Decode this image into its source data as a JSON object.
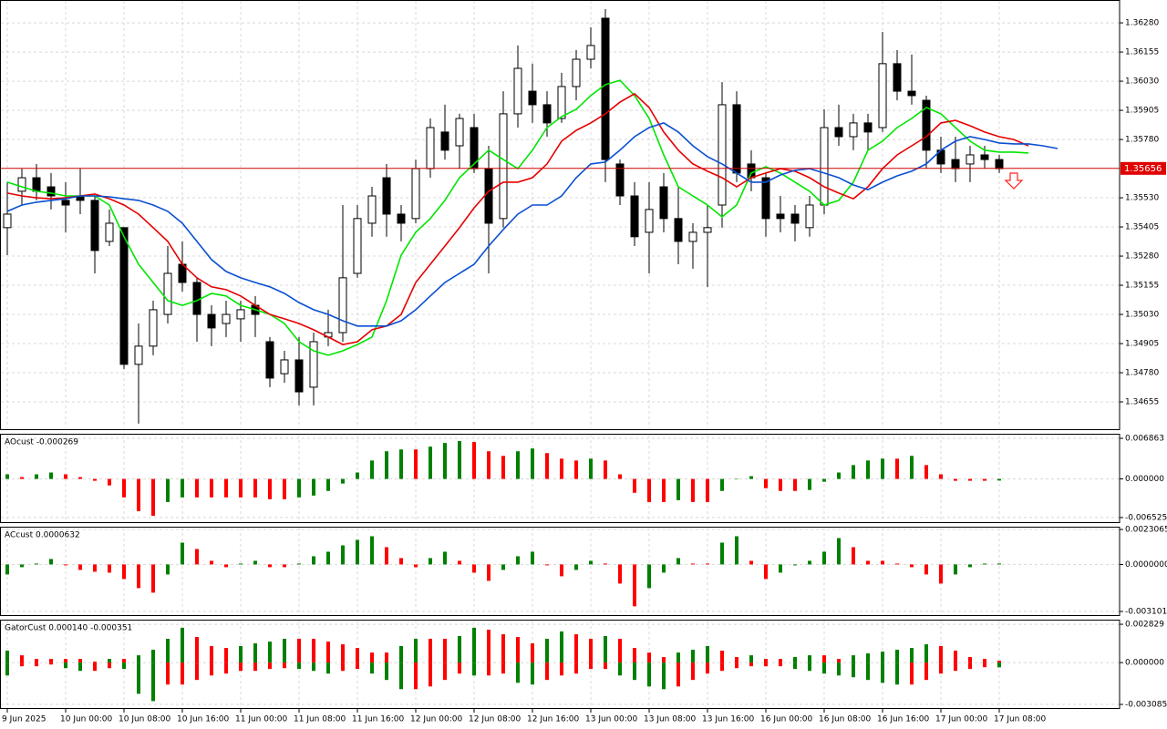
{
  "chart_data": [
    {
      "type": "candlestick",
      "open": [
        1.35402,
        1.35558,
        1.35616,
        1.35577,
        1.35519,
        1.35538,
        1.35519,
        1.35343,
        1.35402,
        1.34816,
        1.34894,
        1.3503,
        1.35245,
        1.35167,
        1.3503,
        1.34991,
        1.35011,
        1.35069,
        1.34913,
        1.34776,
        1.34835,
        1.34718,
        1.34933,
        1.34952,
        1.35206,
        1.35421,
        1.35616,
        1.3546,
        1.35441,
        1.35655,
        1.35812,
        1.35753,
        1.35831,
        1.35655,
        1.35441,
        1.3589,
        1.35987,
        1.35929,
        1.3587,
        1.36007,
        1.36124,
        1.363,
        1.35675,
        1.35538,
        1.35382,
        1.35577,
        1.35441,
        1.35343,
        1.35382,
        1.35499,
        1.35929,
        1.35675,
        1.35616,
        1.3546,
        1.3546,
        1.35402,
        1.35499,
        1.35831,
        1.35792,
        1.35851,
        1.35831,
        1.36105,
        1.35987,
        1.35948,
        1.35734,
        1.35694,
        1.35675,
        1.35714,
        1.35694
      ],
      "high": [
        1.35597,
        1.35655,
        1.35675,
        1.35636,
        1.35597,
        1.35655,
        1.35538,
        1.3548,
        1.35402,
        1.34991,
        1.35089,
        1.35323,
        1.35343,
        1.35187,
        1.35069,
        1.35089,
        1.35089,
        1.35109,
        1.34933,
        1.34874,
        1.34933,
        1.34952,
        1.3505,
        1.35499,
        1.35499,
        1.35577,
        1.35675,
        1.35499,
        1.35694,
        1.3587,
        1.35929,
        1.3589,
        1.3589,
        1.35753,
        1.35987,
        1.36183,
        1.36105,
        1.35987,
        1.36066,
        1.36163,
        1.36261,
        1.36339,
        1.35694,
        1.35597,
        1.35597,
        1.35636,
        1.35577,
        1.35421,
        1.35499,
        1.36026,
        1.35987,
        1.35734,
        1.35636,
        1.35538,
        1.35499,
        1.35538,
        1.35909,
        1.35929,
        1.3589,
        1.3589,
        1.36241,
        1.36163,
        1.36144,
        1.35968,
        1.35792,
        1.35792,
        1.35753,
        1.35753,
        1.35714
      ],
      "low": [
        1.35284,
        1.35499,
        1.35519,
        1.3548,
        1.35382,
        1.3546,
        1.35206,
        1.35323,
        1.34796,
        1.34562,
        1.34855,
        1.34991,
        1.35128,
        1.34913,
        1.34894,
        1.34933,
        1.34913,
        1.34933,
        1.34718,
        1.34737,
        1.3464,
        1.3464,
        1.34894,
        1.34913,
        1.35187,
        1.35363,
        1.35363,
        1.35343,
        1.35421,
        1.35616,
        1.35694,
        1.35655,
        1.35636,
        1.35206,
        1.35402,
        1.35831,
        1.35851,
        1.35792,
        1.35851,
        1.35948,
        1.36085,
        1.35597,
        1.35499,
        1.35323,
        1.35206,
        1.35382,
        1.35245,
        1.35226,
        1.35148,
        1.35402,
        1.35597,
        1.35558,
        1.35363,
        1.35382,
        1.35343,
        1.35363,
        1.3546,
        1.35753,
        1.35734,
        1.35734,
        1.35812,
        1.35948,
        1.35929,
        1.35655,
        1.35636,
        1.35597,
        1.35597,
        1.35655,
        1.35636
      ],
      "close": [
        1.3546,
        1.35616,
        1.35558,
        1.35538,
        1.35499,
        1.35519,
        1.35304,
        1.35421,
        1.34816,
        1.34894,
        1.3505,
        1.35206,
        1.35167,
        1.3503,
        1.34972,
        1.3503,
        1.3505,
        1.3503,
        1.34757,
        1.34835,
        1.34698,
        1.34913,
        1.34952,
        1.35187,
        1.35441,
        1.35538,
        1.3546,
        1.35421,
        1.35655,
        1.35831,
        1.35734,
        1.3587,
        1.35655,
        1.35421,
        1.3589,
        1.36085,
        1.35929,
        1.35851,
        1.36007,
        1.36124,
        1.36183,
        1.35694,
        1.35538,
        1.35363,
        1.3548,
        1.35441,
        1.35343,
        1.35382,
        1.35402,
        1.35929,
        1.35636,
        1.35616,
        1.35441,
        1.35441,
        1.35421,
        1.35499,
        1.35831,
        1.35792,
        1.35851,
        1.35812,
        1.36105,
        1.35987,
        1.35968,
        1.35734,
        1.35675,
        1.35655,
        1.35714,
        1.35694,
        1.35655
      ],
      "up_color": "#ffffff",
      "down_color": "#000000",
      "series": [
        {
          "color": "#00e600",
          "values": [
            1.35597,
            1.35577,
            1.35558,
            1.3555,
            1.35538,
            1.35538,
            1.35538,
            1.35499,
            1.35363,
            1.35245,
            1.35167,
            1.35089,
            1.35069,
            1.35089,
            1.3512,
            1.35109,
            1.35069,
            1.3505,
            1.3503,
            1.34991,
            1.34913,
            1.34874,
            1.34855,
            1.34874,
            1.34901,
            1.34933,
            1.35089,
            1.35284,
            1.35382,
            1.35441,
            1.35519,
            1.35616,
            1.35675,
            1.35734,
            1.35694,
            1.35655,
            1.35734,
            1.35831,
            1.35878,
            1.35909,
            1.35968,
            1.36015,
            1.36034,
            1.35968,
            1.3587,
            1.35714,
            1.35577,
            1.35538,
            1.35499,
            1.35448,
            1.35499,
            1.35636,
            1.35663,
            1.35636,
            1.35597,
            1.35558,
            1.35499,
            1.35519,
            1.35597,
            1.35734,
            1.35773,
            1.35831,
            1.3587,
            1.35917,
            1.3589,
            1.35831,
            1.35773,
            1.35734,
            1.35726,
            1.35726,
            1.35722
          ]
        },
        {
          "color": "#e60000",
          "values": [
            1.3555,
            1.35538,
            1.3553,
            1.35526,
            1.3553,
            1.35538,
            1.35546,
            1.35526,
            1.35499,
            1.3546,
            1.35402,
            1.35343,
            1.35245,
            1.35187,
            1.35148,
            1.35136,
            1.35109,
            1.35069,
            1.3503,
            1.35011,
            1.34991,
            1.34964,
            1.34933,
            1.34901,
            1.34913,
            1.34964,
            1.3498,
            1.3503,
            1.35167,
            1.35245,
            1.35323,
            1.35402,
            1.35487,
            1.35558,
            1.35597,
            1.35597,
            1.35616,
            1.35675,
            1.35773,
            1.35819,
            1.35851,
            1.3589,
            1.3594,
            1.35976,
            1.35917,
            1.35812,
            1.35734,
            1.35675,
            1.35644,
            1.35616,
            1.35577,
            1.35616,
            1.35636,
            1.35655,
            1.35644,
            1.35616,
            1.35577,
            1.3555,
            1.35526,
            1.35577,
            1.35655,
            1.35714,
            1.35753,
            1.35792,
            1.35851,
            1.35862,
            1.35839,
            1.35812,
            1.35792,
            1.3578,
            1.35753
          ]
        },
        {
          "color": "#0a4fd0",
          "values": [
            1.35472,
            1.35499,
            1.35511,
            1.35519,
            1.35526,
            1.35538,
            1.35538,
            1.35534,
            1.35526,
            1.35519,
            1.35499,
            1.35472,
            1.35421,
            1.35343,
            1.35265,
            1.35214,
            1.35187,
            1.35167,
            1.35148,
            1.3512,
            1.35081,
            1.3505,
            1.3503,
            1.35003,
            1.3498,
            1.3498,
            1.3498,
            1.35003,
            1.3505,
            1.35109,
            1.35167,
            1.35206,
            1.35245,
            1.35323,
            1.35394,
            1.3546,
            1.35499,
            1.35499,
            1.35538,
            1.35616,
            1.35675,
            1.35683,
            1.35734,
            1.35792,
            1.35831,
            1.35851,
            1.35812,
            1.35753,
            1.35706,
            1.35675,
            1.35636,
            1.35597,
            1.35597,
            1.35628,
            1.35648,
            1.35655,
            1.35636,
            1.35616,
            1.35585,
            1.35565,
            1.35597,
            1.35624,
            1.35644,
            1.35675,
            1.35734,
            1.35773,
            1.35792,
            1.3578,
            1.35765,
            1.35761,
            1.35761,
            1.35753,
            1.35741
          ]
        }
      ],
      "current_price": 1.35656,
      "xlim": [
        -0.5,
        76.25
      ],
      "xticks": [
        {
          "value": 0,
          "label": "9 Jun 2025"
        },
        {
          "value": 4,
          "label": "10 Jun 00:00"
        },
        {
          "value": 8,
          "label": "10 Jun 08:00"
        },
        {
          "value": 12,
          "label": "10 Jun 16:00"
        },
        {
          "value": 16,
          "label": "11 Jun 00:00"
        },
        {
          "value": 20,
          "label": "11 Jun 08:00"
        },
        {
          "value": 24,
          "label": "11 Jun 16:00"
        },
        {
          "value": 28,
          "label": "12 Jun 00:00"
        },
        {
          "value": 32,
          "label": "12 Jun 08:00"
        },
        {
          "value": 36,
          "label": "12 Jun 16:00"
        },
        {
          "value": 40,
          "label": "13 Jun 00:00"
        },
        {
          "value": 44,
          "label": "13 Jun 08:00"
        },
        {
          "value": 48,
          "label": "13 Jun 16:00"
        },
        {
          "value": 52,
          "label": "16 Jun 00:00"
        },
        {
          "value": 56,
          "label": "16 Jun 08:00"
        },
        {
          "value": 60,
          "label": "16 Jun 16:00"
        },
        {
          "value": 64,
          "label": "17 Jun 00:00"
        },
        {
          "value": 68,
          "label": "17 Jun 08:00"
        }
      ],
      "ylim": [
        1.34534,
        1.36378
      ],
      "yticks": [
        {
          "value": 1.3628,
          "label": "1.36280"
        },
        1.36155,
        {
          "value": 1.3603,
          "label": "1.36030"
        },
        1.35905,
        {
          "value": 1.3578,
          "label": "1.35780"
        },
        {
          "value": 1.3553,
          "label": "1.35530"
        },
        1.35405,
        {
          "value": 1.3528,
          "label": "1.35280"
        },
        1.35155,
        {
          "value": 1.3503,
          "label": "1.35030"
        },
        1.34905,
        {
          "value": 1.3478,
          "label": "1.34780"
        },
        1.34655
      ],
      "grid": true
    },
    {
      "type": "bar",
      "title": "AOcust -0.000269",
      "values": [
        0.00078,
        0.00031,
        0.00078,
        0.00109,
        0.00078,
        0.00031,
        -0.00031,
        -0.00109,
        -0.00312,
        -0.00546,
        -0.00624,
        -0.0039,
        -0.00312,
        -0.00312,
        -0.00312,
        -0.00312,
        -0.00312,
        -0.00312,
        -0.00343,
        -0.00343,
        -0.00312,
        -0.00281,
        -0.00203,
        -0.00078,
        0.00109,
        0.00312,
        0.00468,
        0.00499,
        0.00499,
        0.00546,
        0.00608,
        0.0064,
        0.00624,
        0.00468,
        0.0039,
        0.00468,
        0.00515,
        0.00437,
        0.00343,
        0.00312,
        0.00343,
        0.00312,
        0.00078,
        -0.00234,
        -0.0039,
        -0.0039,
        -0.00359,
        -0.0039,
        -0.0039,
        -0.00203,
        0,
        0.00047,
        -0.00156,
        -0.00203,
        -0.00203,
        -0.00187,
        -0.00047,
        0.00109,
        0.00234,
        0.00312,
        0.00343,
        0.00343,
        0.0039,
        0.00234,
        0.00078,
        -0.00031,
        -0.00031,
        -0.00031,
        -0.000269
      ],
      "up_color": "#008000",
      "down_color": "#ff0000",
      "ylim": [
        -0.00746,
        0.00764
      ],
      "yticks": [
        0.006863,
        {
          "value": 0,
          "label": "0.000000"
        },
        -0.006525
      ],
      "grid": true
    },
    {
      "type": "bar",
      "title": "ACcust 0.0000632",
      "values": [
        -0.00066,
        -0.00018,
        6e-05,
        0.00036,
        -6e-05,
        -0.00036,
        -0.00048,
        -0.00054,
        -0.00096,
        -0.00156,
        -0.00186,
        -0.00066,
        0.00144,
        0.00102,
        0.00024,
        -0.00018,
        6e-05,
        0.00024,
        -0.00018,
        -0.00018,
        6e-05,
        0.00054,
        0.00084,
        0.00126,
        0.00162,
        0.00186,
        0.00114,
        0.00042,
        -0.00018,
        0.00042,
        0.00084,
        0.00024,
        -0.00054,
        -0.00108,
        -0.00036,
        0.00054,
        0.00084,
        -6e-05,
        -0.00078,
        -0.00036,
        0.00024,
        6e-05,
        -0.00126,
        -0.00276,
        -0.00156,
        -0.00054,
        0.00042,
        6e-05,
        6e-05,
        0.00144,
        0.00186,
        0.00024,
        -0.00096,
        -0.00054,
        -6e-05,
        0.00024,
        0.00084,
        0.00174,
        0.00114,
        0.00024,
        0.00024,
        6e-05,
        -0.00018,
        -0.00066,
        -0.00126,
        -0.00066,
        -0.00018,
        6e-05,
        6.32e-05
      ],
      "up_color": "#008000",
      "down_color": "#ff0000",
      "ylim": [
        -0.0034,
        0.00249
      ],
      "yticks": [
        0.0023065,
        {
          "value": 0,
          "label": "0.0000000"
        },
        {
          "value": -0.003101,
          "label": "-0.0031010"
        }
      ],
      "grid": true
    },
    {
      "type": "gator",
      "title": "GatorCust 0.000140 -0.000351",
      "series": [
        {
          "values": [
            0.00088,
            0.00054,
            0.00027,
            0.00027,
            0.00027,
            0.00027,
            7e-05,
            0.00027,
            0.00027,
            0.00054,
            0.00095,
            0.00176,
            0.00257,
            0.00189,
            0.00122,
            0.00108,
            0.00122,
            0.00142,
            0.00155,
            0.00176,
            0.00176,
            0.00176,
            0.00155,
            0.00135,
            0.00108,
            0.00074,
            0.00074,
            0.00122,
            0.00176,
            0.00176,
            0.00176,
            0.00196,
            0.00257,
            0.00243,
            0.00209,
            0.00189,
            0.00142,
            0.00176,
            0.0023,
            0.00209,
            0.00176,
            0.00196,
            0.00176,
            0.00108,
            0.00074,
            0.00041,
            0.00074,
            0.00095,
            0.00122,
            0.00088,
            0.00041,
            0.00054,
            0.00027,
            0.00027,
            0.00041,
            0.00054,
            0.00054,
            0.00027,
            0.00054,
            0.00068,
            0.00081,
            0.00095,
            0.00108,
            0.00135,
            0.00122,
            0.00088,
            0.00041,
            0.00027,
            0.00014
          ]
        },
        {
          "values": [
            -0.00095,
            -0.00027,
            -0.00027,
            -0.00014,
            -0.00041,
            -0.00061,
            -0.00061,
            -0.00041,
            -0.00047,
            -0.0023,
            -0.00284,
            -0.00162,
            -0.00162,
            -0.00128,
            -0.00095,
            -0.00081,
            -0.00061,
            -0.00061,
            -0.00047,
            -0.00041,
            -0.00047,
            -0.00061,
            -0.00081,
            -0.00061,
            -0.00047,
            -0.00081,
            -0.00128,
            -0.00196,
            -0.00196,
            -0.00176,
            -0.00128,
            -0.00081,
            -0.00095,
            -0.00095,
            -0.00081,
            -0.00149,
            -0.00162,
            -0.00128,
            -0.00095,
            -0.00081,
            -0.00047,
            -0.00047,
            -0.00095,
            -0.00128,
            -0.00176,
            -0.00196,
            -0.00176,
            -0.00128,
            -0.00081,
            -0.00061,
            -0.00041,
            -0.00027,
            -0.00027,
            -0.00027,
            -0.00047,
            -0.00061,
            -0.00081,
            -0.00095,
            -0.00108,
            -0.00128,
            -0.00149,
            -0.00162,
            -0.00162,
            -0.00128,
            -0.00081,
            -0.00061,
            -0.00047,
            -0.00034,
            -0.000351
          ]
        }
      ],
      "up_color": "#008000",
      "down_color": "#ff0000",
      "ylim": [
        -0.00342,
        0.00317
      ],
      "yticks": [
        0.002829,
        {
          "value": 0,
          "label": "0.000000"
        },
        -0.003085
      ],
      "grid": true
    }
  ]
}
